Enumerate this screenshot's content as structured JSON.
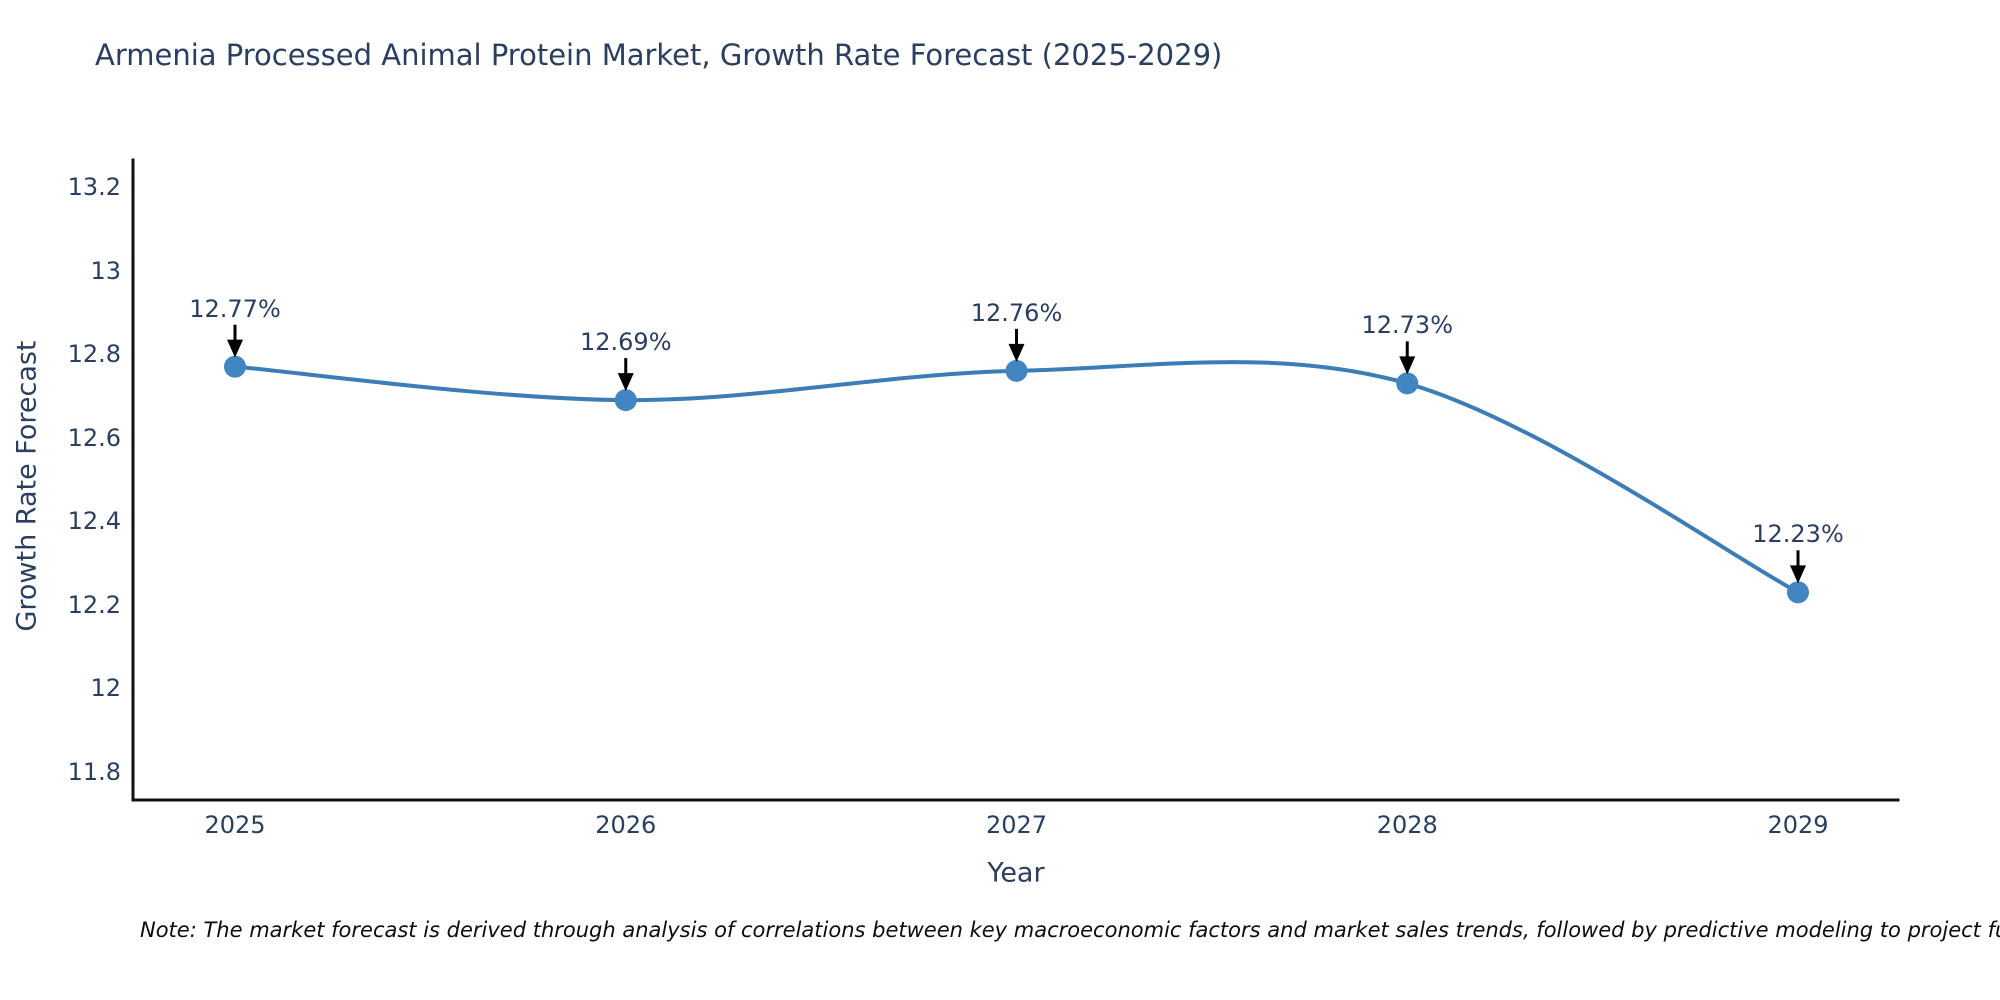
{
  "title": "Armenia Processed Animal Protein Market, Growth Rate Forecast (2025-2029)",
  "note": "Note: The market forecast is derived through analysis of correlations between key macroeconomic factors and market sales trends, followed by predictive modeling to project future sales",
  "chart_data": {
    "type": "line",
    "title": "Armenia Processed Animal Protein Market, Growth Rate Forecast (2025-2029)",
    "x": [
      2025,
      2026,
      2027,
      2028,
      2029
    ],
    "series": [
      {
        "name": "Growth Rate Forecast",
        "values": [
          12.77,
          12.69,
          12.76,
          12.73,
          12.23
        ]
      }
    ],
    "point_labels": [
      "12.77%",
      "12.69%",
      "12.76%",
      "12.73%",
      "12.23%"
    ],
    "xlabel": "Year",
    "ylabel": "Growth Rate Forecast",
    "ylim": [
      11.8,
      13.2
    ],
    "ytick_values": [
      13.2,
      13,
      12.8,
      12.6,
      12.4,
      12.2,
      12,
      11.8
    ],
    "ytick_labels": [
      "13.2",
      "13",
      "12.8",
      "12.6",
      "12.4",
      "12.2",
      "12",
      "11.8"
    ],
    "xtick_labels": [
      "2025",
      "2026",
      "2027",
      "2028",
      "2029"
    ],
    "grid": false,
    "legend": "none",
    "line_shape": "spline",
    "line_color": "#3c7db6",
    "marker_color": "#4286c1",
    "arrow_color": "#000000",
    "axis_line_color": "#111111",
    "text_color": "#2a3f5f"
  }
}
